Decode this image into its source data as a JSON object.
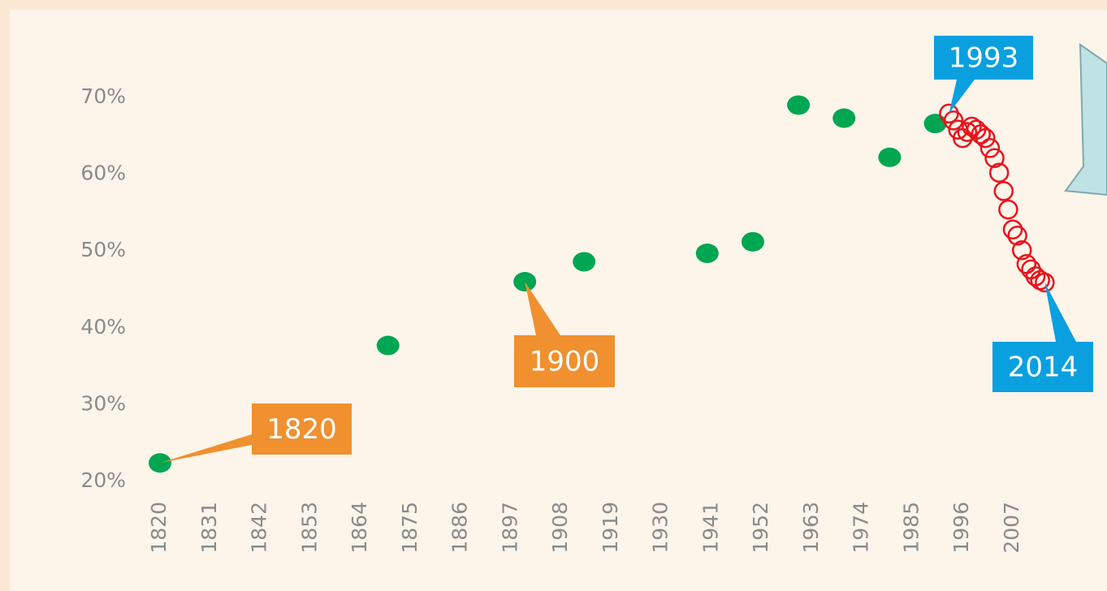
{
  "chart_data": {
    "type": "scatter",
    "annotations": [
      "1820",
      "1900",
      "1993",
      "2014"
    ],
    "xlim": [
      1820,
      2020
    ],
    "xticks": [
      1820,
      1831,
      1842,
      1853,
      1864,
      1875,
      1886,
      1897,
      1908,
      1919,
      1930,
      1941,
      1952,
      1963,
      1974,
      1985,
      1996,
      2007
    ],
    "ylim": [
      20,
      70
    ],
    "yticks": [
      {
        "value": 20,
        "label": "20%"
      },
      {
        "value": 30,
        "label": "30%"
      },
      {
        "value": 40,
        "label": "40%"
      },
      {
        "value": 50,
        "label": "50%"
      },
      {
        "value": 60,
        "label": "60%"
      },
      {
        "value": 70,
        "label": "70%"
      }
    ],
    "grid": false,
    "series": [
      {
        "color": "#00a651",
        "marker": "filled",
        "x": [
          1820,
          1870,
          1900,
          1913,
          1940,
          1950,
          1960,
          1970,
          1980,
          1990
        ],
        "values": [
          22.4,
          37.7,
          46.0,
          48.6,
          49.7,
          51.2,
          69.0,
          67.3,
          62.2,
          66.6
        ]
      },
      {
        "color": "#e8141b",
        "marker": "open",
        "x": [
          1993,
          1994,
          1995,
          1996,
          1997,
          1998,
          1999,
          2000,
          2001,
          2002,
          2003,
          2004,
          2005,
          2006,
          2007,
          2008,
          2009,
          2010,
          2011,
          2012,
          2013,
          2014
        ],
        "values": [
          67.9,
          67.0,
          65.8,
          64.7,
          65.5,
          66.2,
          65.8,
          65.2,
          64.7,
          63.4,
          62.1,
          60.2,
          57.8,
          55.4,
          52.8,
          52.0,
          50.1,
          48.3,
          47.6,
          46.7,
          46.2,
          45.9
        ]
      }
    ]
  }
}
